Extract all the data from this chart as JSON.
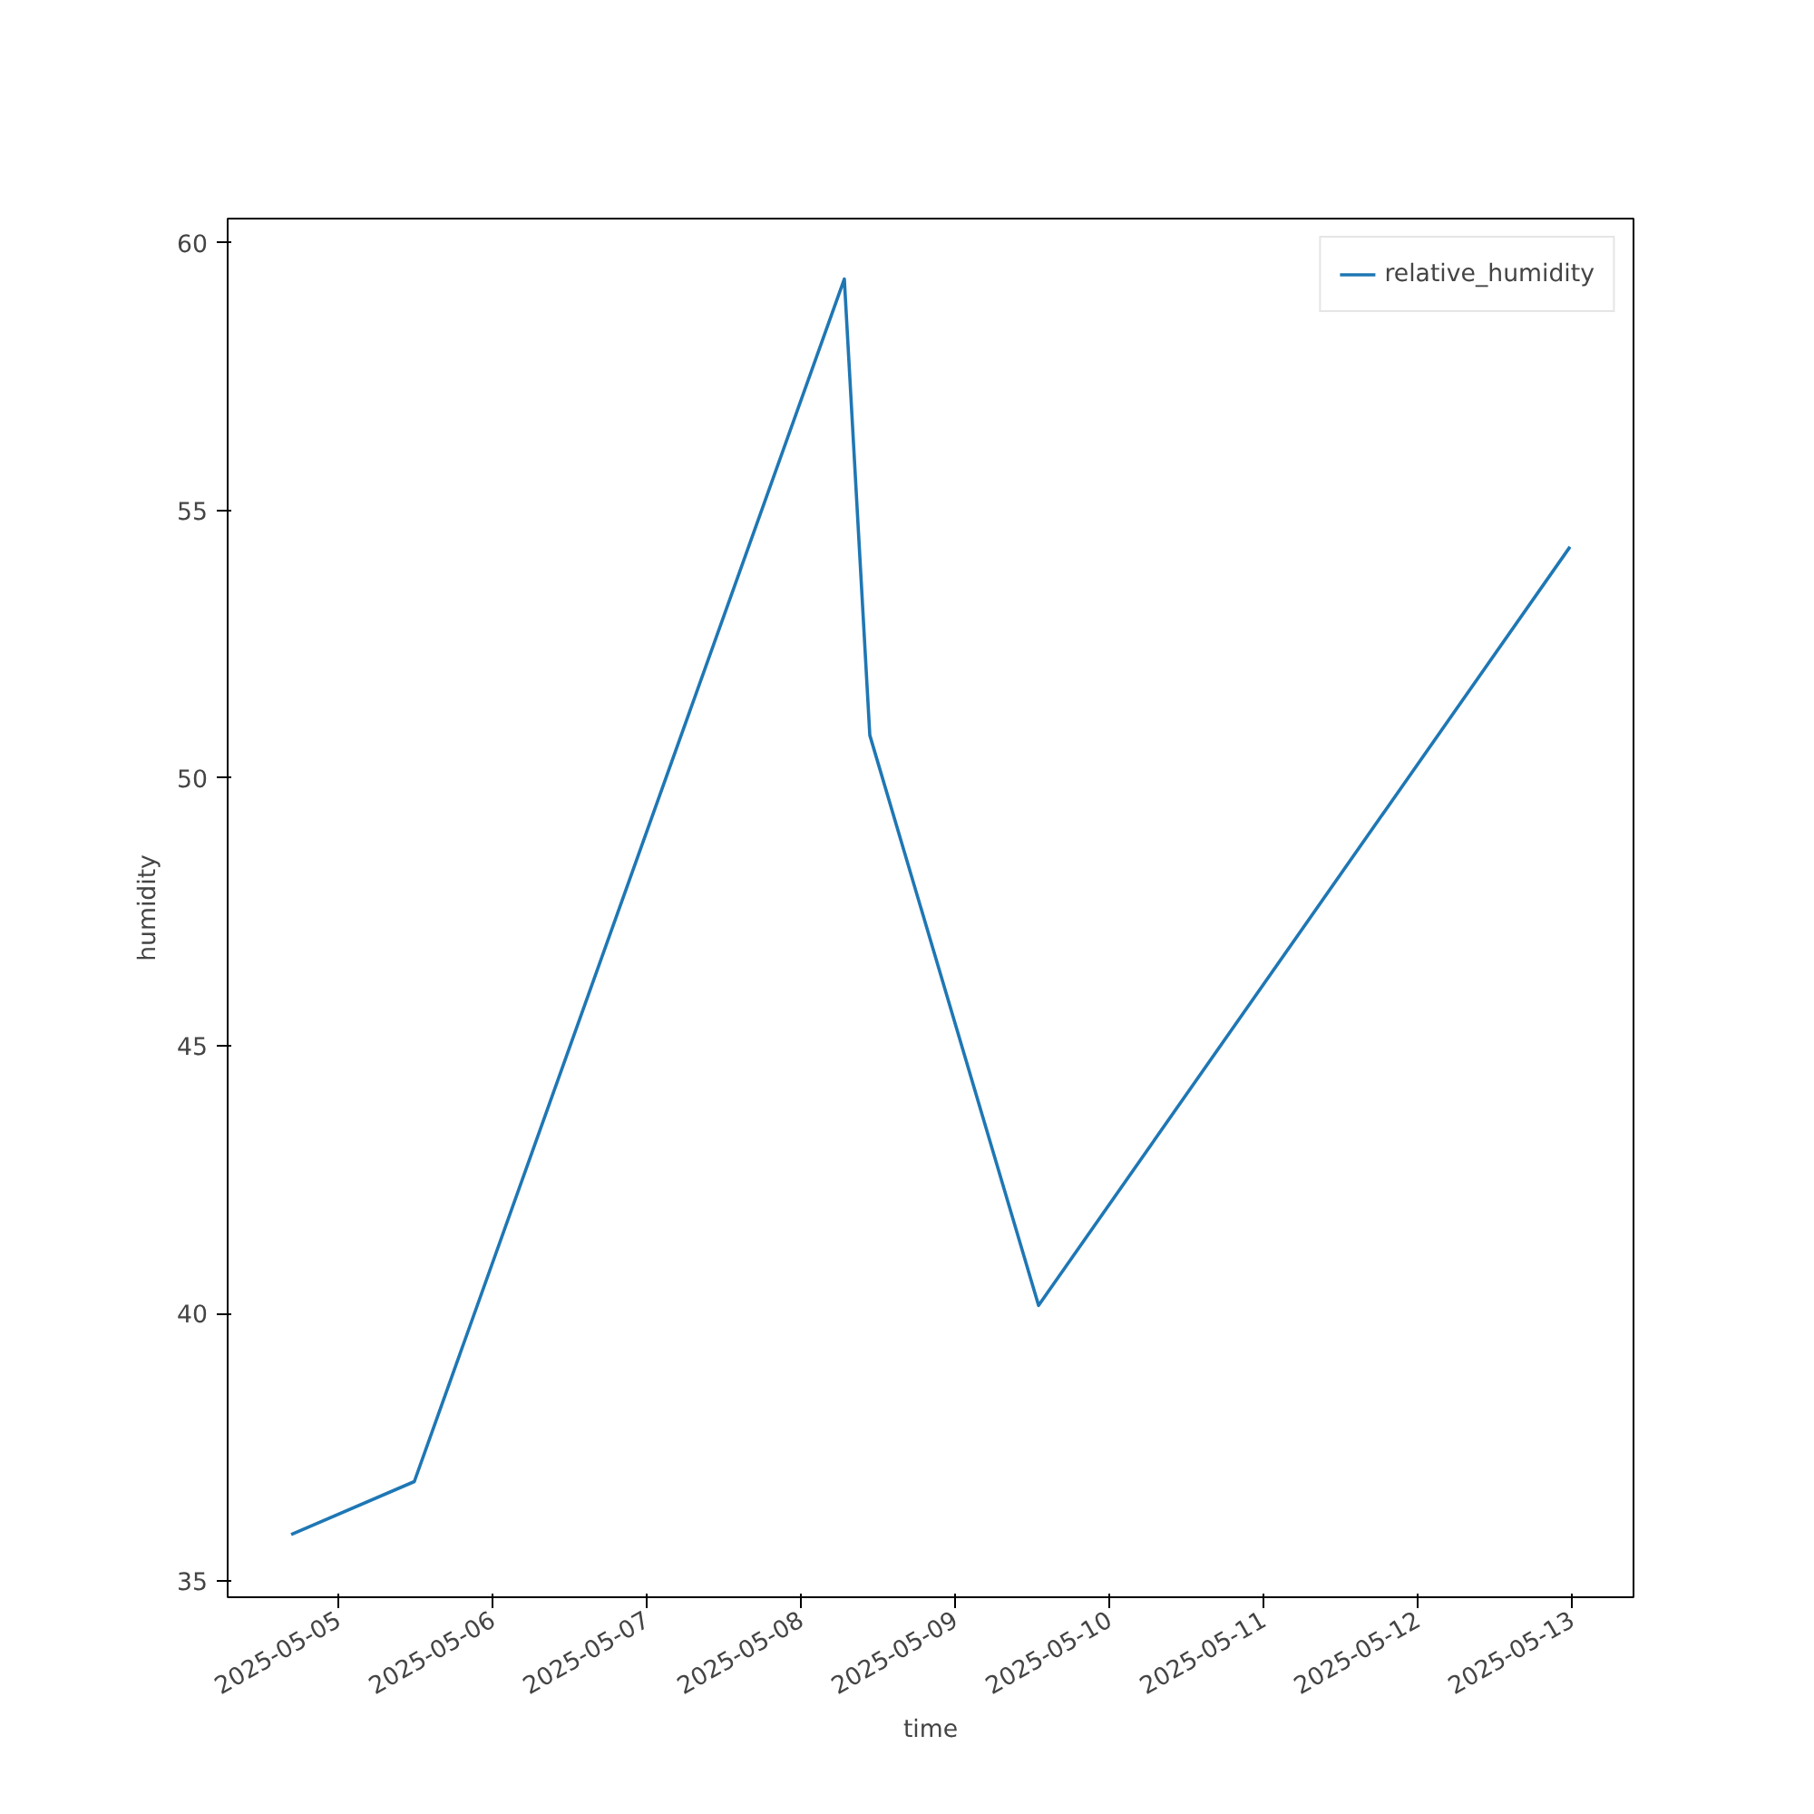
{
  "chart_data": {
    "type": "line",
    "xlabel": "time",
    "ylabel": "humidity",
    "x": [
      "2025-05-04T16:40",
      "2025-05-05T11:50",
      "2025-05-08T06:46",
      "2025-05-08T10:44",
      "2025-05-09T13:00",
      "2025-05-12T23:43"
    ],
    "series": [
      {
        "name": "relative_humidity",
        "color": "#1f77b4",
        "values": [
          35.87,
          36.86,
          59.32,
          50.8,
          40.15,
          54.32
        ]
      }
    ],
    "xlim": [
      "2025-05-04T06:47",
      "2025-05-13T09:36"
    ],
    "xticks": [
      "2025-05-05",
      "2025-05-06",
      "2025-05-07",
      "2025-05-08",
      "2025-05-09",
      "2025-05-10",
      "2025-05-11",
      "2025-05-12",
      "2025-05-13"
    ],
    "ylim": [
      34.7,
      60.45
    ],
    "yticks": [
      35,
      40,
      45,
      50,
      55,
      60
    ],
    "grid": false,
    "legend": "top right",
    "marker": "none",
    "line_style": "solid"
  }
}
